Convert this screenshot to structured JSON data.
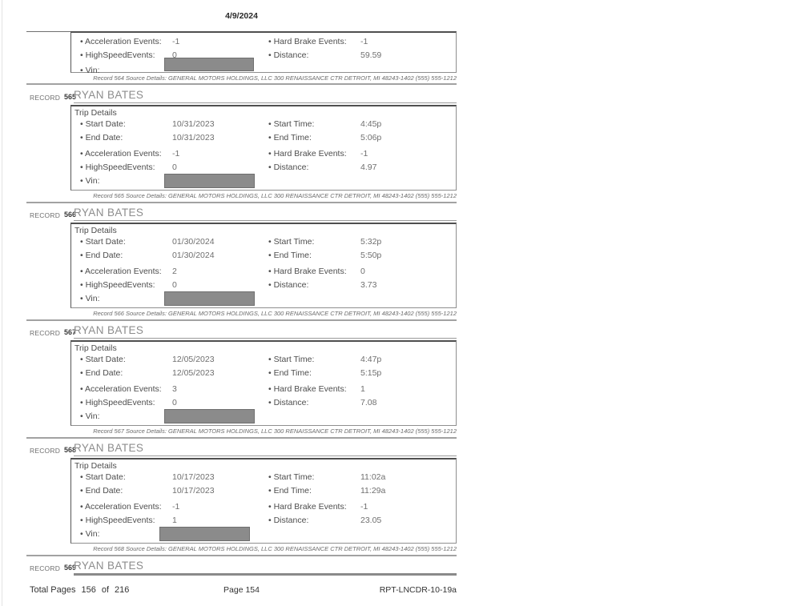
{
  "page": {
    "header_date": "4/9/2024",
    "footer": {
      "total_pages_label": "Total Pages",
      "pages_count": "156",
      "of_label": "of",
      "pages_total": "216",
      "page_label": "Page 154",
      "report_id": "RPT-LNCDR-10-19a"
    }
  },
  "labels": {
    "record": "RECORD",
    "trip_details": "Trip Details",
    "start_date": "• Start Date:",
    "end_date": "• End Date:",
    "start_time": "• Start Time:",
    "end_time": "• End Time:",
    "acceleration": "• Acceleration Events:",
    "hard_brake": "• Hard Brake Events:",
    "high_speed": "• HighSpeedEvents:",
    "distance": "• Distance:",
    "vin": "• Vin:"
  },
  "colors": {
    "vin_redaction": "#8b8b8b",
    "rule_gray": "#a2a2a2",
    "box_border_dark": "#4f4f4f"
  },
  "records": [
    {
      "number": "564",
      "acceleration": "-1",
      "hard_brake": "-1",
      "high_speed": "0",
      "distance": "59.59",
      "source": "Record 564 Source Details: GENERAL MOTORS HOLDINGS, LLC 300 RENAISSANCE CTR DETROIT, MI 48243-1402 (555) 555-1212"
    },
    {
      "number": "565",
      "name": "RYAN BATES",
      "start_date": "10/31/2023",
      "end_date": "10/31/2023",
      "start_time": "4:45p",
      "end_time": "5:06p",
      "acceleration": "-1",
      "hard_brake": "-1",
      "high_speed": "0",
      "distance": "4.97",
      "source": "Record 565 Source Details: GENERAL MOTORS HOLDINGS, LLC 300 RENAISSANCE CTR DETROIT, MI 48243-1402 (555) 555-1212"
    },
    {
      "number": "566",
      "name": "RYAN BATES",
      "start_date": "01/30/2024",
      "end_date": "01/30/2024",
      "start_time": "5:32p",
      "end_time": "5:50p",
      "acceleration": "2",
      "hard_brake": "0",
      "high_speed": "0",
      "distance": "3.73",
      "source": "Record 566 Source Details: GENERAL MOTORS HOLDINGS, LLC 300 RENAISSANCE CTR DETROIT, MI 48243-1402 (555) 555-1212"
    },
    {
      "number": "567",
      "name": "RYAN BATES",
      "start_date": "12/05/2023",
      "end_date": "12/05/2023",
      "start_time": "4:47p",
      "end_time": "5:15p",
      "acceleration": "3",
      "hard_brake": "1",
      "high_speed": "0",
      "distance": "7.08",
      "source": "Record 567 Source Details: GENERAL MOTORS HOLDINGS, LLC 300 RENAISSANCE CTR DETROIT, MI 48243-1402 (555) 555-1212"
    },
    {
      "number": "568",
      "name": "RYAN BATES",
      "start_date": "10/17/2023",
      "end_date": "10/17/2023",
      "start_time": "11:02a",
      "end_time": "11:29a",
      "acceleration": "-1",
      "hard_brake": "-1",
      "high_speed": "1",
      "distance": "23.05",
      "source": "Record 568 Source Details: GENERAL MOTORS HOLDINGS, LLC 300 RENAISSANCE CTR DETROIT, MI 48243-1402 (555) 555-1212"
    },
    {
      "number": "569",
      "name": "RYAN BATES"
    }
  ]
}
